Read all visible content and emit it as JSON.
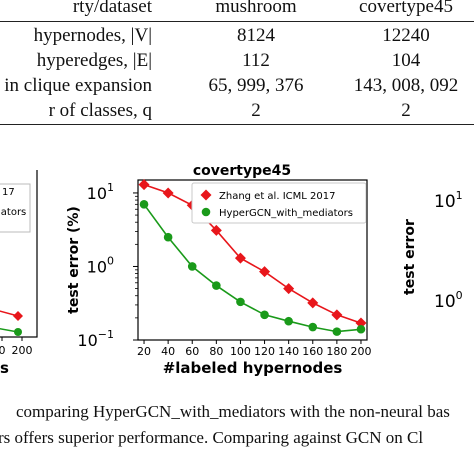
{
  "table": {
    "header": {
      "label": "rty/dataset",
      "col1": "mushroom",
      "col2": "covertype45"
    },
    "rows": [
      {
        "label": " hypernodes, |V|",
        "col1": "8124",
        "col2": "12240"
      },
      {
        "label": " hyperedges, |E|",
        "col1": "112",
        "col2": "104"
      },
      {
        "label": "es in clique expansion",
        "col1": "65, 999, 376",
        "col2": "143, 008, 092"
      },
      {
        "label": "r of classes, q",
        "col1": "2",
        "col2": "2"
      }
    ]
  },
  "left_fragment": {
    "legend_text": "17",
    "legend_text2": "iators",
    "xticks": [
      "0",
      "200"
    ],
    "xlabel": "s"
  },
  "right_fragment": {
    "ytick_top": "10",
    "ytick_top_exp": "1",
    "ytick_bottom": "10",
    "ytick_bottom_exp": "0",
    "ylabel": "test error"
  },
  "caption": {
    "line1": "comparing HyperGCN_with_mediators with the non-neural bas",
    "line2": "rs offers superior performance. Comparing against GCN on Cl"
  },
  "colors": {
    "red": "#e8161b",
    "green": "#1a9a1a"
  },
  "chart_data": {
    "type": "line",
    "title": "covertype45",
    "xlabel": "#labeled hypernodes",
    "ylabel": "test error (%)",
    "yscale": "log",
    "xlim": [
      15,
      205
    ],
    "ylim": [
      0.1,
      15
    ],
    "x": [
      20,
      40,
      60,
      80,
      100,
      120,
      140,
      160,
      180,
      200
    ],
    "xticks": [
      "20",
      "40",
      "60",
      "80",
      "100",
      "120",
      "140",
      "160",
      "180",
      "200"
    ],
    "yticks": [
      {
        "value": 0.1,
        "base": "10",
        "exp": "−1"
      },
      {
        "value": 1,
        "base": "10",
        "exp": "0"
      },
      {
        "value": 10,
        "base": "10",
        "exp": "1"
      }
    ],
    "series": [
      {
        "name": "Zhang et al. ICML 2017",
        "marker": "diamond",
        "color": "#e8161b",
        "values": [
          13,
          10,
          6.8,
          3.1,
          1.3,
          0.85,
          0.5,
          0.32,
          0.22,
          0.17
        ]
      },
      {
        "name": "HyperGCN_with_mediators",
        "marker": "circle",
        "color": "#1a9a1a",
        "values": [
          7.0,
          2.5,
          1.0,
          0.55,
          0.33,
          0.22,
          0.18,
          0.15,
          0.13,
          0.14
        ]
      }
    ],
    "legend_placement": "top-right",
    "grid": false
  }
}
